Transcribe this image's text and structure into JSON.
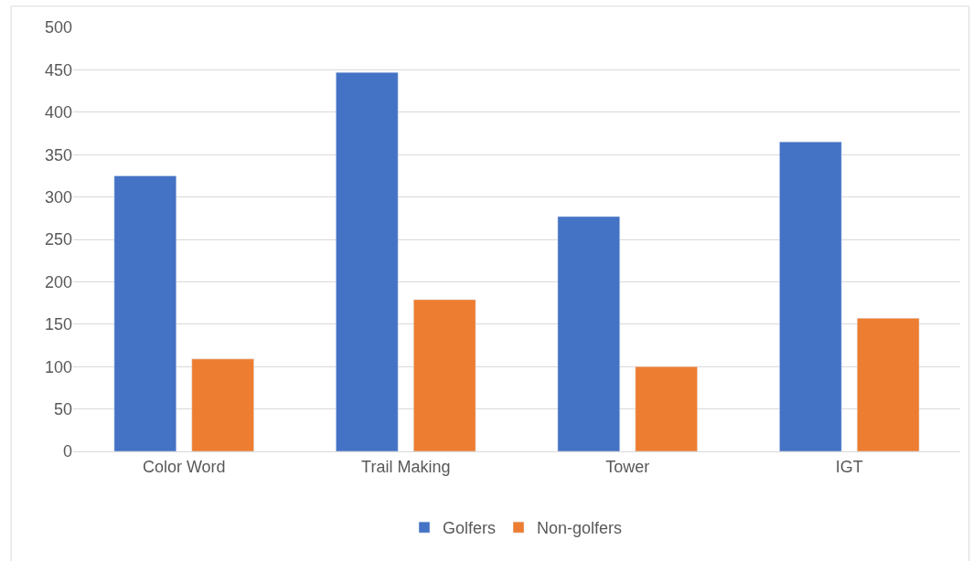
{
  "chart_data": {
    "type": "bar",
    "categories": [
      "Color Word",
      "Trail Making",
      "Tower",
      "IGT"
    ],
    "series": [
      {
        "name": "Golfers",
        "color": "#4472c4",
        "values": [
          325,
          447,
          277,
          365
        ]
      },
      {
        "name": "Non-golfers",
        "color": "#ed7d31",
        "values": [
          109,
          179,
          100,
          157
        ]
      }
    ],
    "ylim": [
      0,
      500
    ],
    "yticks": [
      0,
      50,
      100,
      150,
      200,
      250,
      300,
      350,
      400,
      450,
      500
    ],
    "grid": "y",
    "legend": "bottom"
  }
}
